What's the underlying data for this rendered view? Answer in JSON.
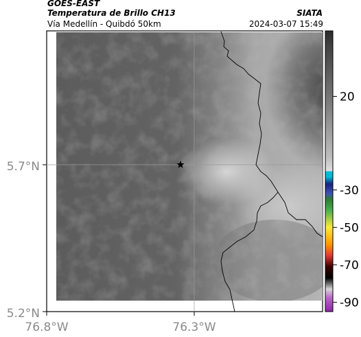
{
  "header": {
    "satellite": "GOES-EAST",
    "product": "Temperatura de Brillo CH13",
    "region": "Vía Medellín - Quibdó 50km",
    "organization": "SIATA",
    "timestamp": "2024-03-07 15:49"
  },
  "map": {
    "lat_labels": [
      "5.7°N",
      "5.2°N"
    ],
    "lon_labels": [
      "76.8°W",
      "76.3°W"
    ],
    "marker": "star-marker"
  },
  "colorbar": {
    "ticks": [
      "20",
      "-30",
      "-50",
      "-70",
      "-90"
    ],
    "tick_values": [
      20,
      -30,
      -50,
      -70,
      -90
    ],
    "range": [
      -95,
      55
    ]
  },
  "colors": {
    "land_dark": "#5e5e5e",
    "land_light": "#bdbdbd",
    "border": "#000000"
  }
}
